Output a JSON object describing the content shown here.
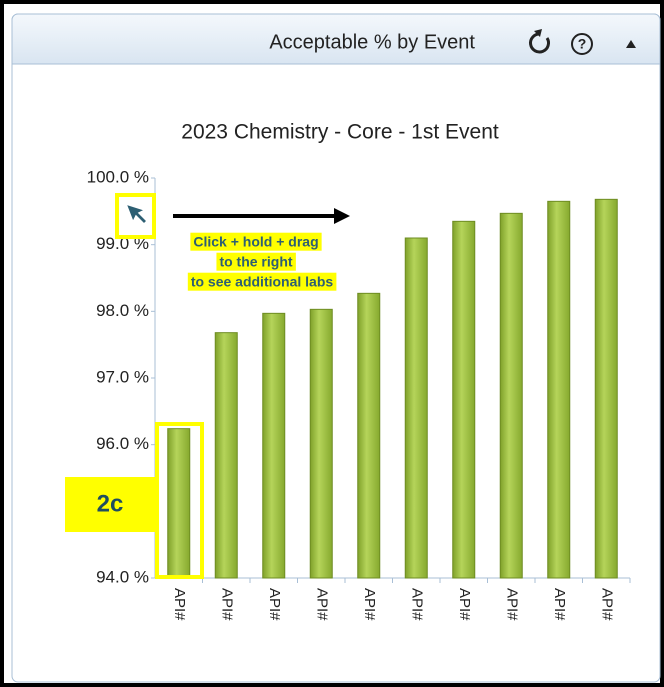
{
  "panel": {
    "title": "Acceptable % by Event"
  },
  "chart_data": {
    "type": "bar",
    "title": "2023 Chemistry - Core - 1st Event",
    "categories": [
      "API#",
      "API#",
      "API#",
      "API#",
      "API#",
      "API#",
      "API#",
      "API#",
      "API#",
      "API#"
    ],
    "values": [
      96.24,
      97.68,
      97.97,
      98.03,
      98.27,
      99.1,
      99.35,
      99.47,
      99.65,
      99.68
    ],
    "color": "#9bbb3c",
    "ylim": [
      94,
      100
    ],
    "yticks": [
      {
        "value": 94,
        "label": "94.0 %"
      },
      {
        "value": 96,
        "label": "96.0 %"
      },
      {
        "value": 97,
        "label": "97.0 %"
      },
      {
        "value": 98,
        "label": "98.0 %"
      },
      {
        "value": 99,
        "label": "99.0 %"
      },
      {
        "value": 100,
        "label": "100.0 %"
      }
    ]
  },
  "annotations": {
    "instruction": [
      "Click + hold +  drag",
      "to the right",
      "to see additional labs"
    ],
    "step": "2c"
  }
}
